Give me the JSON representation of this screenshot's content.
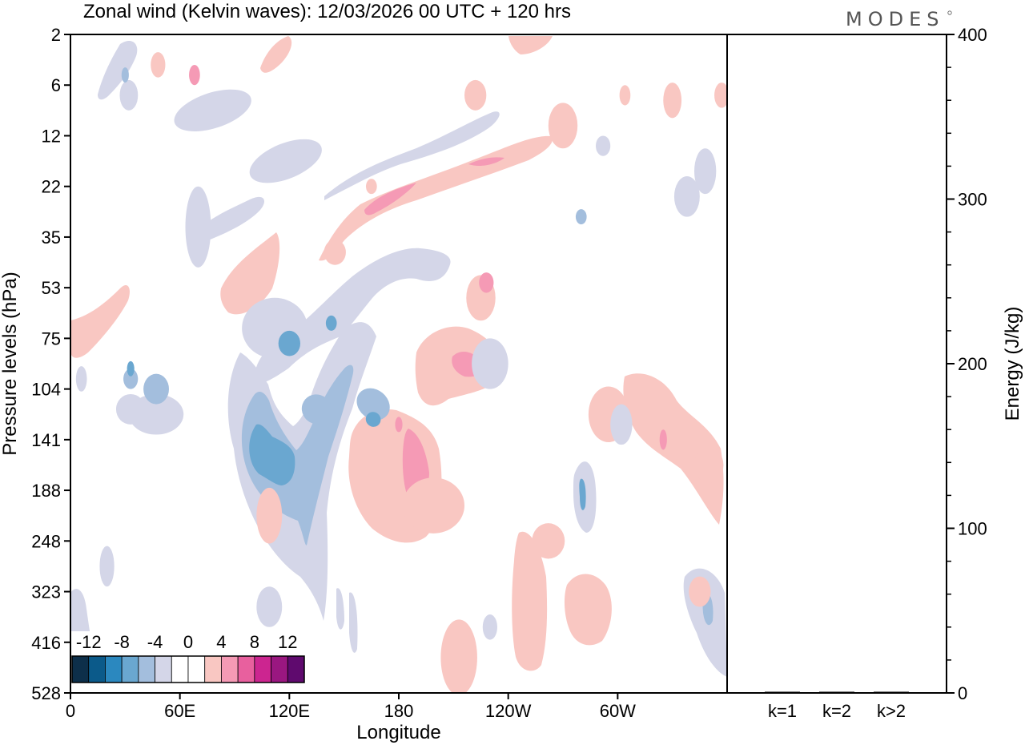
{
  "chart_data": {
    "type": "heatmap",
    "title": "Zonal wind (Kelvin waves):  12/03/2026  00 UTC  + 120 hrs",
    "brand": "MODES",
    "xlabel": "Longitude",
    "ylabel": "Pressure levels (hPa)",
    "x_ticks": [
      "0",
      "60E",
      "120E",
      "180",
      "120W",
      "60W"
    ],
    "x_range_deg_east": [
      0,
      360
    ],
    "y_ticks": [
      "2",
      "6",
      "12",
      "22",
      "35",
      "53",
      "75",
      "104",
      "141",
      "188",
      "248",
      "323",
      "416",
      "528"
    ],
    "colorbar": {
      "labels": [
        "-12",
        "-8",
        "-4",
        "0",
        "4",
        "8",
        "12"
      ],
      "colors": [
        "#0d2f4a",
        "#0b5a8a",
        "#2b88bf",
        "#6aa7d0",
        "#a3bedd",
        "#d4d6e8",
        "#ffffff",
        "#ffffff",
        "#f9c7c2",
        "#f59ab5",
        "#e8609e",
        "#cc2590",
        "#9a1780",
        "#5f0a6e"
      ]
    },
    "energy_panel": {
      "ylabel": "Energy (J/kg)",
      "y_ticks": [
        "0",
        "100",
        "200",
        "300",
        "400"
      ],
      "ylim": [
        0,
        400
      ],
      "categories": [
        "k=1",
        "k=2",
        "k>2"
      ],
      "values": [
        0.5,
        0.5,
        0.5
      ]
    },
    "anomalies": [
      {
        "sign": "neg",
        "level": 1,
        "lon": 47,
        "lev": 7.5,
        "wlon": 15,
        "hlev": 0.8,
        "rot": 0
      },
      {
        "sign": "neg",
        "level": 2,
        "lon": 47,
        "lev": 7.0,
        "wlon": 7,
        "hlev": 0.6,
        "rot": 0
      },
      {
        "sign": "neg",
        "level": 1,
        "lon": 33,
        "lev": 7.4,
        "wlon": 8,
        "hlev": 0.6,
        "rot": 0
      },
      {
        "sign": "neg",
        "level": 2,
        "lon": 33,
        "lev": 6.8,
        "wlon": 4,
        "hlev": 0.4,
        "rot": 0
      },
      {
        "sign": "neg",
        "level": 3,
        "lon": 33,
        "lev": 6.6,
        "wlon": 2,
        "hlev": 0.3,
        "rot": 0
      },
      {
        "sign": "neg",
        "level": 1,
        "lon": 20,
        "lev": 10.5,
        "wlon": 4,
        "hlev": 0.8,
        "rot": 0
      },
      {
        "sign": "neg",
        "level": 1,
        "lon": 109,
        "lev": 11.3,
        "wlon": 7,
        "hlev": 0.8,
        "rot": 0
      },
      {
        "sign": "neg",
        "level": 1,
        "lon": 78,
        "lev": 1.5,
        "wlon": 22,
        "hlev": 0.7,
        "rot": -18
      },
      {
        "sign": "neg",
        "level": 1,
        "lon": 32,
        "lev": 1.2,
        "wlon": 5,
        "hlev": 0.6,
        "rot": 0
      },
      {
        "sign": "neg",
        "level": 2,
        "lon": 30,
        "lev": 0.8,
        "wlon": 2,
        "hlev": 0.3,
        "rot": 0
      },
      {
        "sign": "neg",
        "level": 1,
        "lon": 70,
        "lev": 3.8,
        "wlon": 7,
        "hlev": 1.6,
        "rot": 0
      },
      {
        "sign": "neg",
        "level": 1,
        "lon": 112,
        "lev": 5.8,
        "wlon": 18,
        "hlev": 1.2,
        "rot": 0
      },
      {
        "sign": "pos",
        "level": 1,
        "lon": 109,
        "lev": 9.5,
        "wlon": 7,
        "hlev": 1.1,
        "rot": 0
      },
      {
        "sign": "pos",
        "level": 1,
        "lon": 199,
        "lev": 9.3,
        "wlon": 17,
        "hlev": 1.1,
        "rot": 0
      },
      {
        "sign": "pos",
        "level": 1,
        "lon": 262,
        "lev": 10.0,
        "wlon": 9,
        "hlev": 0.7,
        "rot": 0
      },
      {
        "sign": "pos",
        "level": 1,
        "lon": 350,
        "lev": 8.5,
        "wlon": 8,
        "hlev": 0.7,
        "rot": 0
      },
      {
        "sign": "pos",
        "level": 1,
        "lon": 295,
        "lev": 7.5,
        "wlon": 11,
        "hlev": 1.1,
        "rot": 0
      },
      {
        "sign": "neg",
        "level": 1,
        "lon": 302,
        "lev": 7.7,
        "wlon": 6,
        "hlev": 0.8,
        "rot": 0
      },
      {
        "sign": "neg",
        "level": 1,
        "lon": 348,
        "lev": 2.7,
        "wlon": 6,
        "hlev": 0.9,
        "rot": 0
      },
      {
        "sign": "neg",
        "level": 1,
        "lon": 118,
        "lev": 2.5,
        "wlon": 21,
        "hlev": 0.7,
        "rot": -22
      },
      {
        "sign": "pos",
        "level": 1,
        "lon": 213,
        "lev": 12.3,
        "wlon": 10,
        "hlev": 1.5,
        "rot": 0
      },
      {
        "sign": "pos",
        "level": 1,
        "lon": 225,
        "lev": 5.2,
        "wlon": 8,
        "hlev": 0.9,
        "rot": 0
      },
      {
        "sign": "pos",
        "level": 1,
        "lon": 357,
        "lev": 1.2,
        "wlon": 4,
        "hlev": 0.5,
        "rot": 0
      },
      {
        "sign": "neg",
        "level": 1,
        "lon": 230,
        "lev": 6.5,
        "wlon": 10,
        "hlev": 1.0,
        "rot": 0
      },
      {
        "sign": "pos",
        "level": 1,
        "lon": 270,
        "lev": 1.8,
        "wlon": 8,
        "hlev": 0.9,
        "rot": 0
      },
      {
        "sign": "pos",
        "level": 1,
        "lon": 222,
        "lev": 1.2,
        "wlon": 6,
        "hlev": 0.6,
        "rot": 0
      },
      {
        "sign": "neg",
        "level": 1,
        "lon": 338,
        "lev": 3.2,
        "wlon": 7,
        "hlev": 0.8,
        "rot": 0
      },
      {
        "sign": "pos",
        "level": 1,
        "lon": 345,
        "lev": 11.0,
        "wlon": 6,
        "hlev": 0.6,
        "rot": 0
      },
      {
        "sign": "neg",
        "level": 2,
        "lon": 135,
        "lev": 7.4,
        "wlon": 8,
        "hlev": 0.6,
        "rot": -50
      },
      {
        "sign": "neg",
        "level": 2,
        "lon": 166,
        "lev": 7.3,
        "wlon": 8,
        "hlev": 0.7,
        "rot": -50
      },
      {
        "sign": "neg",
        "level": 3,
        "lon": 166,
        "lev": 7.6,
        "wlon": 4,
        "hlev": 0.3,
        "rot": -50
      },
      {
        "sign": "neg",
        "level": 3,
        "lon": 120,
        "lev": 6.1,
        "wlon": 6,
        "hlev": 0.5,
        "rot": 0
      },
      {
        "sign": "neg",
        "level": 3,
        "lon": 143,
        "lev": 5.7,
        "wlon": 3,
        "hlev": 0.3,
        "rot": 0
      },
      {
        "sign": "pos",
        "level": 2,
        "lon": 68,
        "lev": 0.8,
        "wlon": 3,
        "hlev": 0.4,
        "rot": 0
      },
      {
        "sign": "pos",
        "level": 2,
        "lon": 228,
        "lev": 4.9,
        "wlon": 4,
        "hlev": 0.4,
        "rot": 0
      },
      {
        "sign": "pos",
        "level": 2,
        "lon": 325,
        "lev": 8.0,
        "wlon": 2,
        "hlev": 0.4,
        "rot": 0
      },
      {
        "sign": "pos",
        "level": 2,
        "lon": 180,
        "lev": 7.7,
        "wlon": 2,
        "hlev": 0.3,
        "rot": 0
      },
      {
        "sign": "pos",
        "level": 1,
        "lon": 48,
        "lev": 0.6,
        "wlon": 4,
        "hlev": 0.5,
        "rot": 0
      },
      {
        "sign": "neg",
        "level": 2,
        "lon": 280,
        "lev": 3.6,
        "wlon": 3,
        "hlev": 0.3,
        "rot": 0
      },
      {
        "sign": "neg",
        "level": 1,
        "lon": 292,
        "lev": 2.2,
        "wlon": 4,
        "hlev": 0.4,
        "rot": 0
      },
      {
        "sign": "pos",
        "level": 1,
        "lon": 145,
        "lev": 4.3,
        "wlon": 6,
        "hlev": 0.5,
        "rot": 0
      },
      {
        "sign": "pos",
        "level": 1,
        "lon": 330,
        "lev": 1.3,
        "wlon": 5,
        "hlev": 0.7,
        "rot": 0
      },
      {
        "sign": "neg",
        "level": 1,
        "lon": 230,
        "lev": 11.7,
        "wlon": 4,
        "hlev": 0.5,
        "rot": 0
      },
      {
        "sign": "neg",
        "level": 1,
        "lon": 6,
        "lev": 6.8,
        "wlon": 3,
        "hlev": 0.5,
        "rot": 0
      },
      {
        "sign": "pos",
        "level": 1,
        "lon": 304,
        "lev": 1.2,
        "wlon": 3,
        "hlev": 0.4,
        "rot": 0
      },
      {
        "sign": "pos",
        "level": 1,
        "lon": 165,
        "lev": 3.0,
        "wlon": 3,
        "hlev": 0.3,
        "rot": 0
      }
    ]
  }
}
